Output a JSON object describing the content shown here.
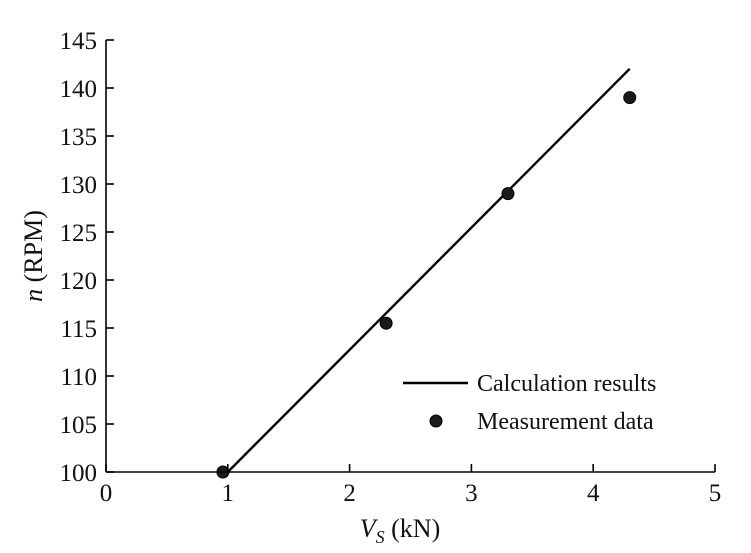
{
  "chart_data": {
    "type": "line",
    "xlabel": {
      "var": "V",
      "sub": "S",
      "unit": " (kN)"
    },
    "ylabel": {
      "var": "n",
      "unit": " (RPM)"
    },
    "xlim": [
      0,
      5
    ],
    "ylim": [
      100,
      145
    ],
    "x_ticks": [
      0,
      1,
      2,
      3,
      4,
      5
    ],
    "y_ticks": [
      100,
      105,
      110,
      115,
      120,
      125,
      130,
      135,
      140,
      145
    ],
    "grid": false,
    "legend_position": "bottom-right",
    "series": [
      {
        "name": "Calculation results",
        "kind": "line",
        "color": "#000000",
        "x": [
          1.0,
          4.3
        ],
        "y": [
          100.0,
          142.0
        ]
      },
      {
        "name": "Measurement data",
        "kind": "scatter",
        "color": "#1a1a1a",
        "x": [
          0.96,
          2.3,
          3.3,
          4.3
        ],
        "y": [
          100.0,
          115.5,
          129.0,
          139.0
        ]
      }
    ]
  }
}
